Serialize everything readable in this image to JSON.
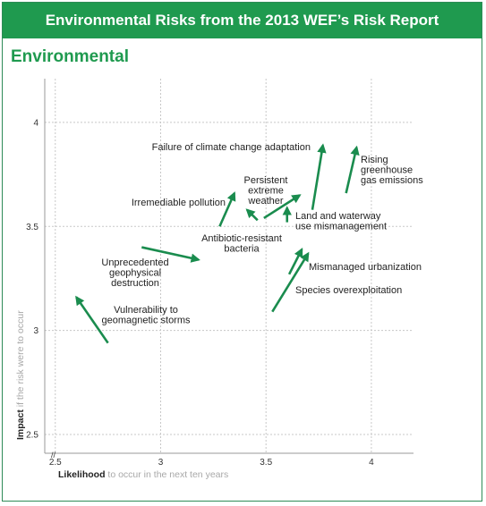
{
  "header": {
    "title": "Environmental Risks from the 2013 WEF’s Risk Report"
  },
  "chart_data": {
    "type": "scatter",
    "title": "Environmental",
    "xlabel_bold": "Likelihood",
    "xlabel_rest": " to occur in the next ten years",
    "ylabel_bold": "Impact",
    "ylabel_rest": " if the risk were to occur",
    "xlim": [
      2.45,
      4.2
    ],
    "ylim": [
      2.41,
      4.21
    ],
    "xticks": [
      "2.5",
      "3",
      "3.5",
      "4"
    ],
    "yticks": [
      "2.5",
      "3",
      "3.5",
      "4"
    ],
    "grid": true,
    "accent_color": "#1a8c4e",
    "risks": [
      {
        "label": [
          "Failure of climate change adaptation"
        ],
        "from": [
          3.72,
          3.58
        ],
        "to": [
          3.77,
          3.89
        ]
      },
      {
        "label": [
          "Rising",
          "greenhouse",
          "gas emissions"
        ],
        "from": [
          3.88,
          3.66
        ],
        "to": [
          3.93,
          3.88
        ]
      },
      {
        "label": [
          "Persistent",
          "extreme",
          "weather"
        ],
        "from": [
          3.49,
          3.54
        ],
        "to": [
          3.66,
          3.65
        ]
      },
      {
        "label": [
          "Irremediable pollution"
        ],
        "from": [
          3.28,
          3.5
        ],
        "to": [
          3.35,
          3.66
        ]
      },
      {
        "label": [
          "Land and waterway",
          "use mismanagement"
        ],
        "from": [
          3.6,
          3.52
        ],
        "to": [
          3.6,
          3.59
        ]
      },
      {
        "label": [
          "Antibiotic-resistant",
          "bacteria"
        ],
        "from": [
          3.46,
          3.53
        ],
        "to": [
          3.41,
          3.58
        ]
      },
      {
        "label": [
          "Unprecedented",
          "geophysical",
          "destruction"
        ],
        "from": [
          2.91,
          3.4
        ],
        "to": [
          3.18,
          3.34
        ]
      },
      {
        "label": [
          "Mismanaged urbanization"
        ],
        "from": [
          3.61,
          3.27
        ],
        "to": [
          3.67,
          3.39
        ]
      },
      {
        "label": [
          "Species overexploitation"
        ],
        "from": [
          3.53,
          3.09
        ],
        "to": [
          3.7,
          3.37
        ]
      },
      {
        "label": [
          "Vulnerability to",
          "geomagnetic storms"
        ],
        "from": [
          2.75,
          2.94
        ],
        "to": [
          2.6,
          3.16
        ]
      }
    ]
  }
}
